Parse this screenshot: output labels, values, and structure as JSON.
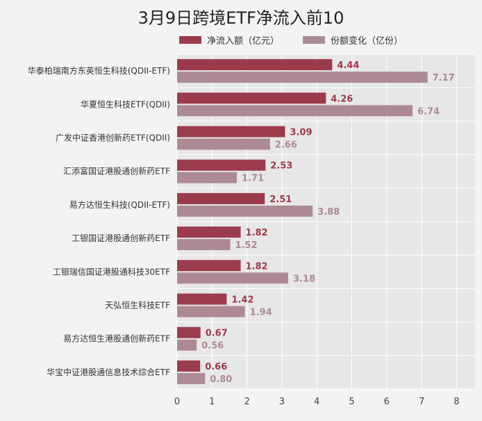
{
  "chart_data": {
    "type": "bar",
    "orientation": "horizontal",
    "title": "3月9日跨境ETF净流入前10",
    "categories": [
      "华泰柏瑞南方东英恒生科技(QDII-ETF)",
      "华夏恒生科技ETF(QDII)",
      "广发中证香港创新药ETF(QDII)",
      "汇添富国证港股通创新药ETF",
      "易方达恒生科技(QDII-ETF)",
      "工银国证港股通创新药ETF",
      "工银瑞信国证港股通科技30ETF",
      "天弘恒生科技ETF",
      "易方达恒生港股通创新药ETF",
      "华宝中证港股通信息技术综合ETF"
    ],
    "series": [
      {
        "name": "净流入额（亿元）",
        "color": "#9b3b4c",
        "values": [
          4.44,
          4.26,
          3.09,
          2.53,
          2.51,
          1.82,
          1.82,
          1.42,
          0.67,
          0.66
        ]
      },
      {
        "name": "份额变化（亿份）",
        "color": "#ad8a93",
        "values": [
          7.17,
          6.74,
          2.66,
          1.71,
          3.88,
          1.52,
          3.18,
          1.94,
          0.56,
          0.8
        ]
      }
    ],
    "xlim": [
      0,
      8
    ],
    "xticks": [
      "0",
      "1",
      "2",
      "3",
      "4",
      "5",
      "6",
      "7",
      "8"
    ],
    "grid": true,
    "legend_position": "top"
  }
}
